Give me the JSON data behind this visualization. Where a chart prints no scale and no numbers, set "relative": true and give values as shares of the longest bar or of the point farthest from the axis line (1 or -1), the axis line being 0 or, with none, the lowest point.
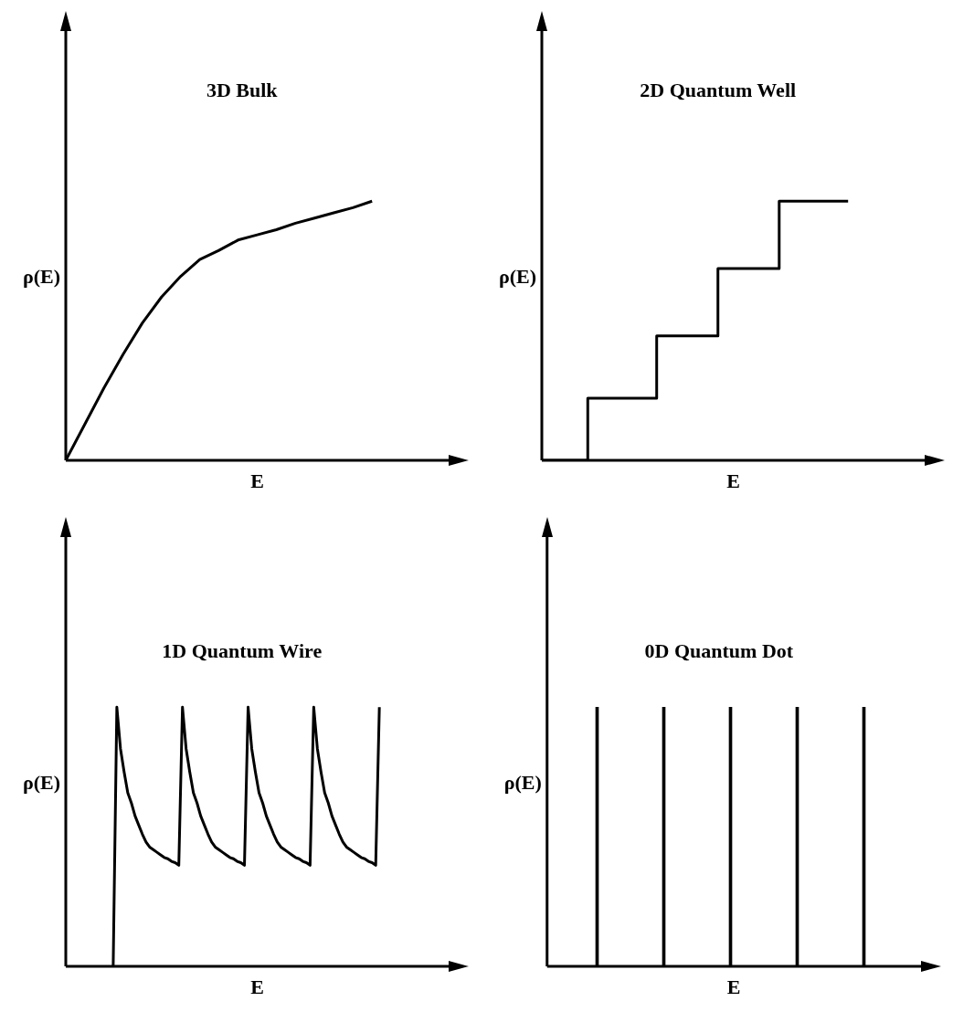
{
  "chart_data": [
    {
      "type": "line",
      "title": "3D Bulk",
      "xlabel": "E",
      "ylabel": "ρ(E)",
      "relative": true,
      "categories": [
        null,
        null,
        null,
        null,
        null,
        null,
        null,
        null,
        null,
        null,
        null,
        null,
        null,
        null,
        null,
        null,
        null,
        null,
        null,
        null,
        null
      ],
      "series": [
        {
          "color": "#000000",
          "values": [
            0,
            0.14,
            0.28,
            0.41,
            0.53,
            0.63,
            0.71,
            0.775,
            0.81,
            0.85,
            0.87,
            0.89,
            0.915,
            0.935,
            0.955,
            0.975,
            1,
            null,
            null,
            null,
            null
          ]
        }
      ]
    },
    {
      "type": "step",
      "title": "2D Quantum Well",
      "xlabel": "E",
      "ylabel": "ρ(E)",
      "relative": true,
      "categories": [
        null,
        null,
        null,
        null,
        null,
        null,
        null,
        null,
        null,
        null,
        null,
        null,
        null,
        null,
        null,
        null,
        null,
        null,
        null,
        null,
        null,
        null,
        null,
        null,
        null,
        null,
        null,
        null,
        null,
        null,
        null,
        null,
        null,
        null,
        null,
        null,
        null,
        null,
        null,
        null,
        null,
        null,
        null,
        null,
        null,
        null,
        null,
        null,
        null,
        null,
        null
      ],
      "series": [
        {
          "color": "#000000",
          "values": [
            0,
            0,
            0,
            0,
            0,
            0,
            0,
            0.24,
            0.24,
            0.24,
            0.24,
            0.24,
            0.24,
            0.24,
            0.24,
            0.24,
            0.48,
            0.48,
            0.48,
            0.48,
            0.48,
            0.48,
            0.48,
            0.48,
            0.74,
            0.74,
            0.74,
            0.74,
            0.74,
            0.74,
            0.74,
            0.74,
            1,
            1,
            1,
            1,
            1,
            1,
            1,
            1,
            1,
            null,
            null,
            null,
            null,
            null,
            null,
            null,
            null,
            null,
            null
          ]
        }
      ]
    },
    {
      "type": "line",
      "title": "1D Quantum Wire",
      "xlabel": "E",
      "ylabel": "ρ(E)",
      "relative": true,
      "categories": [
        null,
        null,
        null,
        null,
        null,
        null,
        null,
        null,
        null,
        null,
        null,
        null,
        null,
        null,
        null,
        null,
        null,
        null,
        null,
        null,
        null,
        null,
        null,
        null,
        null,
        null,
        null,
        null,
        null,
        null,
        null,
        null,
        null,
        null,
        null,
        null,
        null,
        null,
        null,
        null,
        null,
        null,
        null,
        null,
        null,
        null,
        null,
        null,
        null,
        null,
        null,
        null,
        null,
        null,
        null,
        null,
        null,
        null,
        null,
        null,
        null,
        null,
        null,
        null,
        null,
        null,
        null,
        null,
        null,
        null,
        null,
        null,
        null,
        null,
        null,
        null,
        null,
        null,
        null,
        null,
        null,
        null,
        null,
        null,
        null,
        null,
        null,
        null,
        null,
        null,
        null,
        null,
        null,
        null,
        null,
        null,
        null,
        null,
        null,
        null,
        null,
        null,
        null,
        null,
        null,
        null
      ],
      "series": [
        {
          "color": "#000000",
          "values": [
            null,
            null,
            null,
            null,
            null,
            null,
            null,
            null,
            null,
            null,
            null,
            null,
            null,
            0,
            1,
            0.84,
            0.75,
            0.67,
            0.63,
            0.58,
            0.545,
            0.51,
            0.48,
            0.46,
            0.45,
            0.44,
            0.43,
            0.42,
            0.415,
            0.405,
            0.4,
            0.39,
            1,
            0.84,
            0.75,
            0.67,
            0.63,
            0.58,
            0.545,
            0.51,
            0.48,
            0.46,
            0.45,
            0.44,
            0.43,
            0.42,
            0.415,
            0.405,
            0.4,
            0.39,
            1,
            0.84,
            0.75,
            0.67,
            0.63,
            0.58,
            0.545,
            0.51,
            0.48,
            0.46,
            0.45,
            0.44,
            0.43,
            0.42,
            0.415,
            0.405,
            0.4,
            0.39,
            1,
            0.84,
            0.75,
            0.67,
            0.63,
            0.58,
            0.545,
            0.51,
            0.48,
            0.46,
            0.45,
            0.44,
            0.43,
            0.42,
            0.415,
            0.405,
            0.4,
            0.39,
            1,
            null,
            null,
            null,
            null,
            null,
            null,
            null,
            null,
            null,
            null,
            null,
            null,
            null,
            null,
            null,
            null,
            null,
            null,
            null
          ]
        }
      ]
    },
    {
      "type": "bar",
      "title": "0D Quantum Dot",
      "xlabel": "E",
      "ylabel": "ρ(E)",
      "relative": true,
      "categories": [
        null,
        null,
        null,
        null,
        null
      ],
      "series": [
        {
          "color": "#000000",
          "values": [
            1,
            1,
            1,
            1,
            1
          ]
        }
      ]
    }
  ]
}
